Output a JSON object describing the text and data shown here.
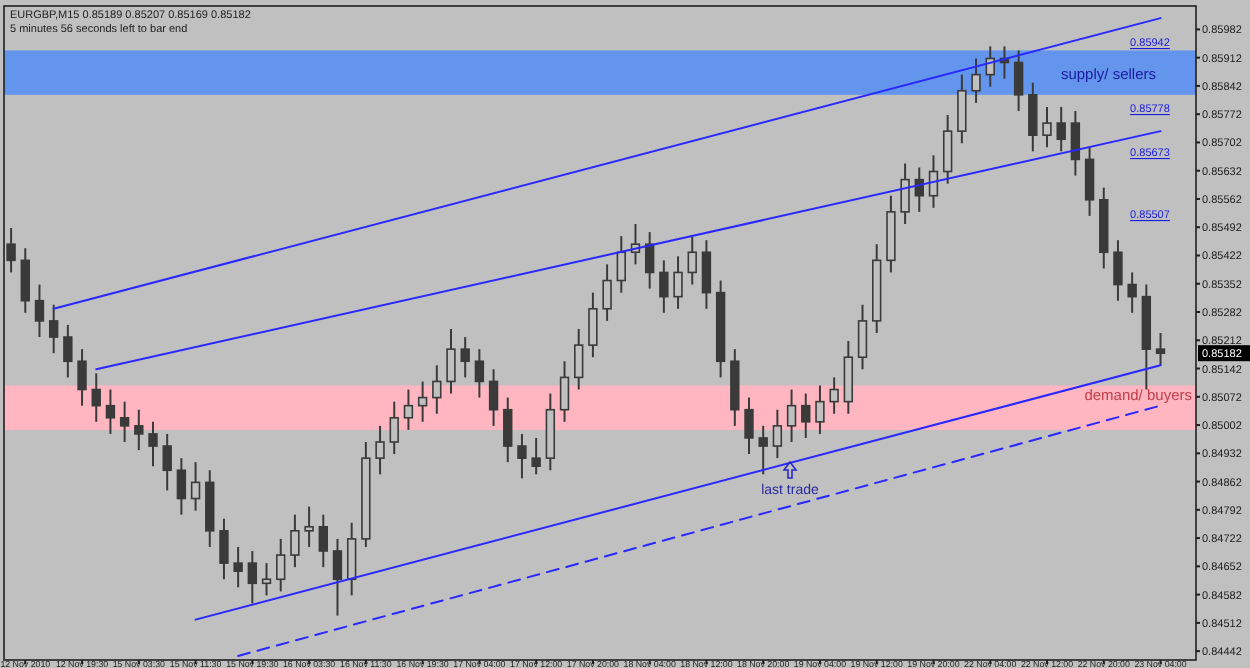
{
  "chart_data": {
    "type": "candlestick",
    "title": "EURGBP,M15  0.85189 0.85207 0.85169 0.85182",
    "subtitle": "5 minutes 56 seconds left to bar end",
    "categories": [
      null,
      "12 Nov 2010",
      null,
      null,
      null,
      "12 Nov 19:30",
      null,
      null,
      null,
      "15 Nov 03:30",
      null,
      null,
      null,
      "15 Nov 11:30",
      null,
      null,
      null,
      "15 Nov 19:30",
      null,
      null,
      null,
      "16 Nov 03:30",
      null,
      null,
      null,
      "16 Nov 11:30",
      null,
      null,
      null,
      "16 Nov 19:30",
      null,
      null,
      null,
      "17 Nov 04:00",
      null,
      null,
      null,
      "17 Nov 12:00",
      null,
      null,
      null,
      "17 Nov 20:00",
      null,
      null,
      null,
      "18 Nov 04:00",
      null,
      null,
      null,
      "18 Nov 12:00",
      null,
      null,
      null,
      "18 Nov 20:00",
      null,
      null,
      null,
      "19 Nov 04:00",
      null,
      null,
      null,
      "19 Nov 12:00",
      null,
      null,
      null,
      "19 Nov 20:00",
      null,
      null,
      null,
      "22 Nov 04:00",
      null,
      null,
      null,
      "22 Nov 12:00",
      null,
      null,
      null,
      "22 Nov 20:00",
      null,
      null,
      null,
      "23 Nov 04:00"
    ],
    "color": "#3a3a3a",
    "ohlc": [
      [
        0.8545,
        0.8549,
        0.8538,
        0.8541
      ],
      [
        0.8541,
        0.8544,
        0.8528,
        0.8531
      ],
      [
        0.8531,
        0.8535,
        0.8522,
        0.8526
      ],
      [
        0.8526,
        0.853,
        0.8518,
        0.8522
      ],
      [
        0.8522,
        0.8525,
        0.8512,
        0.8516
      ],
      [
        0.8516,
        0.8519,
        0.8505,
        0.8509
      ],
      [
        0.8509,
        0.8513,
        0.8501,
        0.8505
      ],
      [
        0.8505,
        0.8509,
        0.8498,
        0.8502
      ],
      [
        0.8502,
        0.8506,
        0.8496,
        0.85
      ],
      [
        0.85,
        0.8504,
        0.8494,
        0.8498
      ],
      [
        0.8498,
        0.8501,
        0.849,
        0.8495
      ],
      [
        0.8495,
        0.8498,
        0.8484,
        0.8489
      ],
      [
        0.8489,
        0.8492,
        0.8478,
        0.8482
      ],
      [
        0.8482,
        0.8491,
        0.8479,
        0.8486
      ],
      [
        0.8486,
        0.8489,
        0.847,
        0.8474
      ],
      [
        0.8474,
        0.8477,
        0.8462,
        0.8466
      ],
      [
        0.8466,
        0.847,
        0.846,
        0.8464
      ],
      [
        0.8466,
        0.8469,
        0.8456,
        0.8461
      ],
      [
        0.8461,
        0.8466,
        0.8458,
        0.8462
      ],
      [
        0.8462,
        0.8472,
        0.8459,
        0.8468
      ],
      [
        0.8468,
        0.8478,
        0.8465,
        0.8474
      ],
      [
        0.8474,
        0.848,
        0.847,
        0.8475
      ],
      [
        0.8475,
        0.8478,
        0.8465,
        0.8469
      ],
      [
        0.8469,
        0.8472,
        0.8453,
        0.8462
      ],
      [
        0.8462,
        0.8476,
        0.8458,
        0.8472
      ],
      [
        0.8472,
        0.8496,
        0.847,
        0.8492
      ],
      [
        0.8492,
        0.85,
        0.8488,
        0.8496
      ],
      [
        0.8496,
        0.8506,
        0.8493,
        0.8502
      ],
      [
        0.8502,
        0.8509,
        0.8499,
        0.8505
      ],
      [
        0.8505,
        0.8511,
        0.8501,
        0.8507
      ],
      [
        0.8507,
        0.8515,
        0.8503,
        0.8511
      ],
      [
        0.8511,
        0.8524,
        0.8508,
        0.8519
      ],
      [
        0.8519,
        0.8522,
        0.8512,
        0.8516
      ],
      [
        0.8516,
        0.8519,
        0.8507,
        0.8511
      ],
      [
        0.8511,
        0.8514,
        0.85,
        0.8504
      ],
      [
        0.8504,
        0.8507,
        0.8491,
        0.8495
      ],
      [
        0.8495,
        0.8498,
        0.8487,
        0.8492
      ],
      [
        0.8492,
        0.8497,
        0.8488,
        0.849
      ],
      [
        0.8492,
        0.8508,
        0.8489,
        0.8504
      ],
      [
        0.8504,
        0.8516,
        0.8501,
        0.8512
      ],
      [
        0.8512,
        0.8524,
        0.8509,
        0.852
      ],
      [
        0.852,
        0.8533,
        0.8517,
        0.8529
      ],
      [
        0.8529,
        0.854,
        0.8526,
        0.8536
      ],
      [
        0.8536,
        0.8547,
        0.8533,
        0.8543
      ],
      [
        0.8543,
        0.855,
        0.854,
        0.8545
      ],
      [
        0.8545,
        0.8548,
        0.8534,
        0.8538
      ],
      [
        0.8538,
        0.8541,
        0.8528,
        0.8532
      ],
      [
        0.8532,
        0.8542,
        0.8529,
        0.8538
      ],
      [
        0.8538,
        0.8547,
        0.8535,
        0.8543
      ],
      [
        0.8543,
        0.8546,
        0.8529,
        0.8533
      ],
      [
        0.8533,
        0.8536,
        0.8512,
        0.8516
      ],
      [
        0.8516,
        0.8519,
        0.85,
        0.8504
      ],
      [
        0.8504,
        0.8507,
        0.8493,
        0.8497
      ],
      [
        0.8497,
        0.85,
        0.8488,
        0.8495
      ],
      [
        0.8495,
        0.8504,
        0.8492,
        0.85
      ],
      [
        0.85,
        0.8509,
        0.8496,
        0.8505
      ],
      [
        0.8505,
        0.8508,
        0.8497,
        0.8501
      ],
      [
        0.8501,
        0.851,
        0.8498,
        0.8506
      ],
      [
        0.8506,
        0.8512,
        0.8503,
        0.8509
      ],
      [
        0.8506,
        0.8521,
        0.8503,
        0.8517
      ],
      [
        0.8517,
        0.853,
        0.8514,
        0.8526
      ],
      [
        0.8526,
        0.8545,
        0.8523,
        0.8541
      ],
      [
        0.8541,
        0.8557,
        0.8538,
        0.8553
      ],
      [
        0.8553,
        0.8565,
        0.855,
        0.8561
      ],
      [
        0.8561,
        0.8564,
        0.8553,
        0.8557
      ],
      [
        0.8557,
        0.8567,
        0.8554,
        0.8563
      ],
      [
        0.8563,
        0.8577,
        0.856,
        0.8573
      ],
      [
        0.8573,
        0.8587,
        0.857,
        0.8583
      ],
      [
        0.8583,
        0.8591,
        0.858,
        0.8587
      ],
      [
        0.8587,
        0.8594,
        0.8584,
        0.8591
      ],
      [
        0.8591,
        0.8594,
        0.8586,
        0.859
      ],
      [
        0.859,
        0.8593,
        0.8578,
        0.8582
      ],
      [
        0.8582,
        0.8585,
        0.8568,
        0.8572
      ],
      [
        0.8572,
        0.8579,
        0.8569,
        0.8575
      ],
      [
        0.8575,
        0.8579,
        0.8568,
        0.8571
      ],
      [
        0.8575,
        0.8578,
        0.8562,
        0.8566
      ],
      [
        0.8566,
        0.8569,
        0.8552,
        0.8556
      ],
      [
        0.8556,
        0.8559,
        0.8539,
        0.8543
      ],
      [
        0.8543,
        0.8546,
        0.8531,
        0.8535
      ],
      [
        0.8535,
        0.8538,
        0.8528,
        0.8532
      ],
      [
        0.8532,
        0.8535,
        0.8509,
        0.8519
      ],
      [
        0.8519,
        0.8523,
        0.8515,
        0.8518
      ]
    ],
    "series": [
      {
        "type": "line",
        "color": "#2828ff",
        "values": [
          null,
          null,
          null,
          0.8529,
          null,
          null,
          null,
          null,
          null,
          null,
          null,
          null,
          null,
          null,
          null,
          null,
          null,
          null,
          null,
          null,
          null,
          null,
          null,
          null,
          null,
          null,
          null,
          null,
          null,
          null,
          null,
          null,
          null,
          null,
          null,
          null,
          null,
          null,
          null,
          null,
          null,
          null,
          null,
          null,
          null,
          null,
          null,
          null,
          null,
          null,
          null,
          null,
          null,
          null,
          null,
          null,
          null,
          null,
          null,
          null,
          null,
          null,
          null,
          null,
          null,
          null,
          null,
          null,
          null,
          null,
          null,
          null,
          null,
          null,
          null,
          null,
          null,
          null,
          null,
          null,
          null,
          0.8601
        ]
      },
      {
        "type": "line",
        "color": "#2828ff",
        "values": [
          null,
          null,
          null,
          null,
          null,
          null,
          0.8514,
          null,
          null,
          null,
          null,
          null,
          null,
          null,
          null,
          null,
          null,
          null,
          null,
          null,
          null,
          null,
          null,
          null,
          null,
          null,
          null,
          null,
          null,
          null,
          null,
          null,
          null,
          null,
          null,
          null,
          null,
          null,
          null,
          null,
          null,
          null,
          null,
          null,
          null,
          null,
          null,
          null,
          null,
          null,
          null,
          null,
          null,
          null,
          null,
          null,
          null,
          null,
          null,
          null,
          null,
          null,
          null,
          null,
          null,
          null,
          null,
          null,
          null,
          null,
          null,
          null,
          null,
          null,
          null,
          null,
          null,
          null,
          null,
          null,
          null,
          0.8573
        ]
      },
      {
        "type": "line",
        "color": "#2828ff",
        "values": [
          null,
          null,
          null,
          null,
          null,
          null,
          null,
          null,
          null,
          null,
          null,
          null,
          null,
          0.8452,
          null,
          null,
          null,
          null,
          null,
          null,
          null,
          null,
          null,
          null,
          null,
          null,
          null,
          null,
          null,
          null,
          null,
          null,
          null,
          null,
          null,
          null,
          null,
          null,
          null,
          null,
          null,
          null,
          null,
          null,
          null,
          null,
          null,
          null,
          null,
          null,
          null,
          null,
          null,
          null,
          null,
          null,
          null,
          null,
          null,
          null,
          null,
          null,
          null,
          null,
          null,
          null,
          null,
          null,
          null,
          null,
          null,
          null,
          null,
          null,
          null,
          null,
          null,
          null,
          null,
          null,
          null,
          0.8515
        ]
      },
      {
        "type": "line",
        "color": "#2828ff",
        "line_style": "dashed",
        "values": [
          null,
          null,
          null,
          null,
          null,
          null,
          null,
          null,
          null,
          null,
          null,
          null,
          null,
          null,
          null,
          null,
          0.8443,
          null,
          null,
          null,
          null,
          null,
          null,
          null,
          null,
          null,
          null,
          null,
          null,
          null,
          null,
          null,
          null,
          null,
          null,
          null,
          null,
          null,
          null,
          null,
          null,
          null,
          null,
          null,
          null,
          null,
          null,
          null,
          null,
          null,
          null,
          null,
          null,
          null,
          null,
          null,
          null,
          null,
          null,
          null,
          null,
          null,
          null,
          null,
          null,
          null,
          null,
          null,
          null,
          null,
          null,
          null,
          null,
          null,
          null,
          null,
          null,
          null,
          null,
          null,
          null,
          0.8505
        ]
      }
    ],
    "bands": [
      {
        "axis": "y",
        "from": 0.8582,
        "to": 0.8593,
        "label": "supply/ sellers",
        "color": "#6495ed"
      },
      {
        "axis": "y",
        "from": 0.8499,
        "to": 0.851,
        "label": "demand/ buyers",
        "color": "#ffb6c1"
      }
    ],
    "annotations": [
      "0.85942",
      "0.85778",
      "0.85673",
      "0.85507",
      "last trade",
      "0.85182"
    ],
    "ylim": [
      0.8442,
      0.8604
    ],
    "yticks": [
      0.84442,
      0.84512,
      0.84582,
      0.84652,
      0.84722,
      0.84792,
      0.84862,
      0.84932,
      0.85002,
      0.85072,
      0.85142,
      0.85212,
      0.85282,
      0.85352,
      0.85422,
      0.85492,
      0.85562,
      0.85632,
      0.85702,
      0.85772,
      0.85842,
      0.85912,
      0.85982
    ]
  }
}
